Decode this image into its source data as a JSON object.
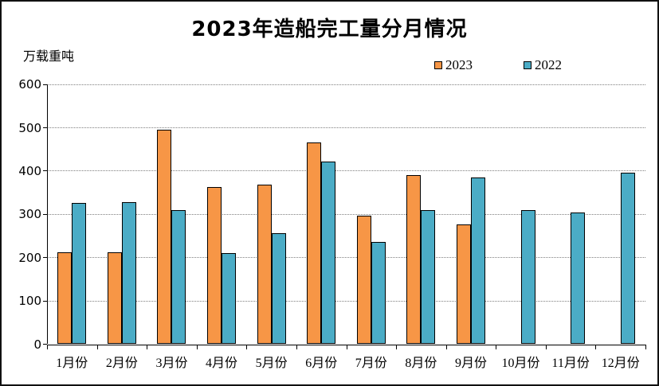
{
  "title": "2023年造船完工量分月情况",
  "y_axis_unit": "万载重吨",
  "colors": {
    "background": "#ffffff",
    "frame_border": "#111111",
    "gridline": "#7f7f7f",
    "axis": "#000000",
    "text": "#000000"
  },
  "chart_data": {
    "type": "bar",
    "title": "2023年造船完工量分月情况",
    "ylabel": "万载重吨",
    "xlabel": "",
    "ylim": [
      0,
      600
    ],
    "yticks": [
      0,
      100,
      200,
      300,
      400,
      500,
      600
    ],
    "grid": "horizontal-dotted",
    "legend_position": "top",
    "categories": [
      "1月份",
      "2月份",
      "3月份",
      "4月份",
      "5月份",
      "6月份",
      "7月份",
      "8月份",
      "9月份",
      "10月份",
      "11月份",
      "12月份"
    ],
    "series": [
      {
        "name": "2023",
        "color": "#F79646",
        "values": [
          212,
          212,
          495,
          363,
          368,
          466,
          297,
          390,
          277,
          null,
          null,
          null
        ]
      },
      {
        "name": "2022",
        "color": "#4BACC6",
        "values": [
          327,
          328,
          309,
          210,
          257,
          422,
          236,
          310,
          386,
          309,
          304,
          397
        ]
      }
    ]
  }
}
